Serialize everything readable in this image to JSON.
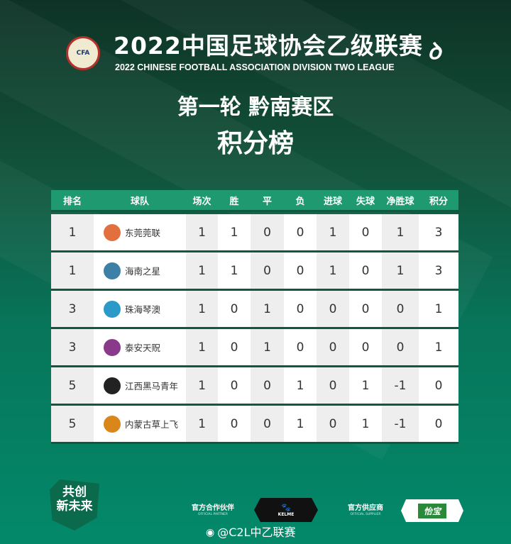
{
  "header": {
    "title_cn": "2022中国足球协会乙级联赛",
    "title_en": "2022 CHINESE FOOTBALL ASSOCIATION DIVISION TWO LEAGUE",
    "cfa_logo": "CFA",
    "round": "第一轮 黔南赛区",
    "subtitle": "积分榜"
  },
  "table": {
    "columns": [
      "排名",
      "球队",
      "场次",
      "胜",
      "平",
      "负",
      "进球",
      "失球",
      "净胜球",
      "积分"
    ],
    "rows": [
      {
        "rank": "1",
        "team": "东莞莞联",
        "badge_color": "#e2703f",
        "played": "1",
        "win": "1",
        "draw": "0",
        "loss": "0",
        "gf": "1",
        "ga": "0",
        "gd": "1",
        "pts": "3"
      },
      {
        "rank": "1",
        "team": "海南之星",
        "badge_color": "#3d7fa6",
        "played": "1",
        "win": "1",
        "draw": "0",
        "loss": "0",
        "gf": "1",
        "ga": "0",
        "gd": "1",
        "pts": "3"
      },
      {
        "rank": "3",
        "team": "珠海琴澳",
        "badge_color": "#2b9ac9",
        "played": "1",
        "win": "0",
        "draw": "1",
        "loss": "0",
        "gf": "0",
        "ga": "0",
        "gd": "0",
        "pts": "1"
      },
      {
        "rank": "3",
        "team": "泰安天贶",
        "badge_color": "#8a3a8a",
        "played": "1",
        "win": "0",
        "draw": "1",
        "loss": "0",
        "gf": "0",
        "ga": "0",
        "gd": "0",
        "pts": "1"
      },
      {
        "rank": "5",
        "team": "江西黑马青年",
        "badge_color": "#222222",
        "played": "1",
        "win": "0",
        "draw": "0",
        "loss": "1",
        "gf": "0",
        "ga": "1",
        "gd": "-1",
        "pts": "0"
      },
      {
        "rank": "5",
        "team": "内蒙古草上飞",
        "badge_color": "#d9861a",
        "played": "1",
        "win": "0",
        "draw": "0",
        "loss": "1",
        "gf": "0",
        "ga": "1",
        "gd": "-1",
        "pts": "0"
      }
    ]
  },
  "footer": {
    "slogan_line1": "共创",
    "slogan_line2": "新未来",
    "partner_label": "官方合作伙伴",
    "partner_label_en": "OFFICIAL PARTNER",
    "partner_brand": "KELME",
    "supplier_label": "官方供应商",
    "supplier_label_en": "OFFICIAL SUPPLIER",
    "supplier_brand": "怡宝",
    "weibo": "@C2L中乙联赛"
  }
}
